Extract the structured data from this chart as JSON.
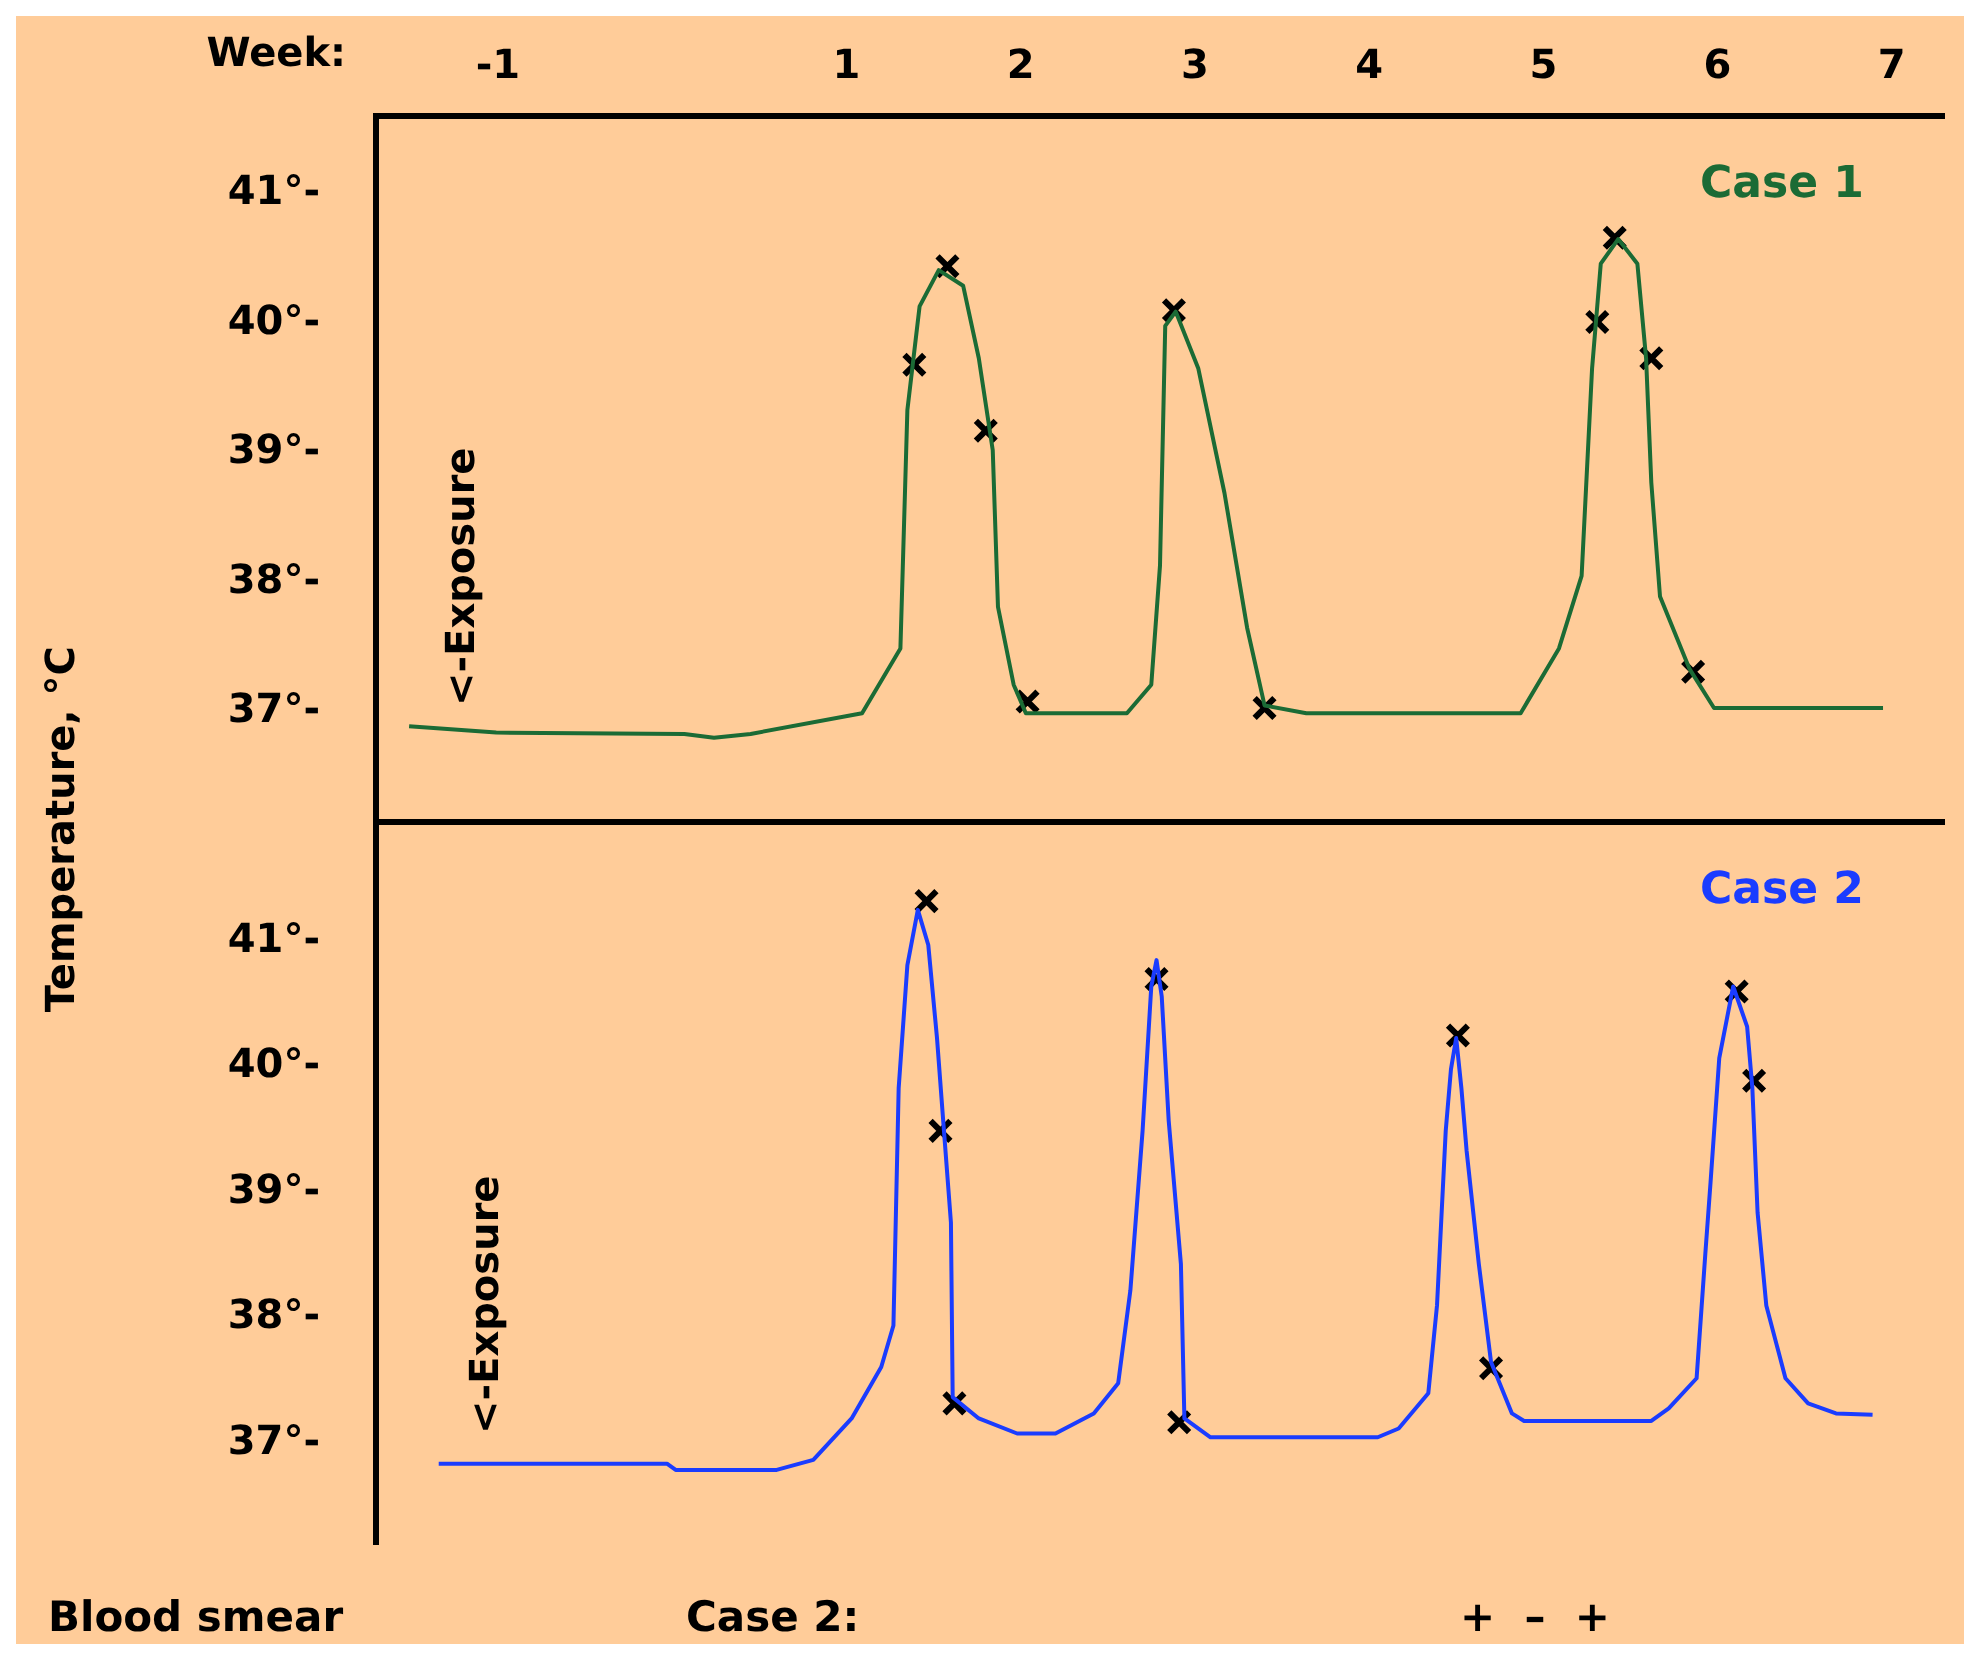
{
  "chart_data": [
    {
      "type": "line",
      "xlabel": "Week:",
      "ylabel": "Temperature, °C",
      "xlim": [
        -1.7,
        7.3
      ],
      "xticks": [
        -1,
        1,
        2,
        3,
        4,
        5,
        6,
        7
      ],
      "ylim": [
        36.15,
        41.6
      ],
      "yticks": [
        {
          "value": 37,
          "label": "37°-"
        },
        {
          "value": 38,
          "label": "38°-"
        },
        {
          "value": 39,
          "label": "39°-"
        },
        {
          "value": 40,
          "label": "40°-"
        },
        {
          "value": 41,
          "label": "41°-"
        }
      ],
      "annotations": [
        "<-Exposure"
      ],
      "series": [
        {
          "name": "Case 1",
          "color": "#1b6b35",
          "x": [
            -1.51,
            -1.01,
            0.07,
            0.24,
            0.45,
            1.09,
            1.31,
            1.35,
            1.42,
            1.53,
            1.67,
            1.76,
            1.84,
            1.87,
            1.96,
            2.03,
            2.61,
            2.75,
            2.8,
            2.83,
            2.89,
            3.02,
            3.17,
            3.3,
            3.4,
            3.64,
            4.87,
            5.09,
            5.22,
            5.28,
            5.33,
            5.43,
            5.54,
            5.59,
            5.62,
            5.67,
            5.84,
            5.98,
            6.95
          ],
          "values": [
            36.89,
            36.84,
            36.83,
            36.8,
            36.83,
            36.99,
            37.49,
            39.33,
            40.13,
            40.41,
            40.29,
            39.73,
            39.02,
            37.81,
            37.21,
            36.99,
            36.99,
            37.21,
            38.13,
            39.98,
            40.09,
            39.65,
            38.69,
            37.65,
            37.05,
            36.99,
            36.99,
            37.49,
            38.05,
            39.65,
            40.46,
            40.65,
            40.46,
            39.73,
            38.77,
            37.89,
            37.33,
            37.03,
            37.03
          ]
        },
        {
          "type": "scatter",
          "color": "#000000",
          "marker": "cross",
          "x": [
            1.39,
            1.58,
            1.8,
            2.04,
            2.88,
            3.4,
            5.31,
            5.41,
            5.62,
            5.86
          ],
          "values": [
            39.68,
            40.44,
            39.17,
            37.08,
            40.1,
            37.03,
            40.01,
            40.66,
            39.73,
            37.31
          ]
        }
      ]
    },
    {
      "type": "line",
      "tick_labels": "y",
      "xlim": [
        -1.7,
        7.3
      ],
      "xticks": [
        -1,
        1,
        2,
        3,
        4,
        5,
        6,
        7
      ],
      "ylim": [
        36.2,
        41.95
      ],
      "yticks": [
        {
          "value": 37,
          "label": "37°-"
        },
        {
          "value": 38,
          "label": "38°-"
        },
        {
          "value": 39,
          "label": "39°-"
        },
        {
          "value": 40,
          "label": "40°-"
        },
        {
          "value": 41,
          "label": "41°-"
        }
      ],
      "annotations": [
        "<-Exposure",
        "Blood smear",
        "Case 2:",
        "+  –  +"
      ],
      "series": [
        {
          "name": "Case 2",
          "color": "#1a3cff",
          "x": [
            -1.34,
            -0.03,
            0.02,
            0.6,
            0.81,
            1.03,
            1.2,
            1.27,
            1.3,
            1.35,
            1.41,
            1.47,
            1.52,
            1.56,
            1.6,
            1.61,
            1.76,
            1.98,
            2.2,
            2.42,
            2.56,
            2.63,
            2.7,
            2.75,
            2.78,
            2.81,
            2.85,
            2.92,
            2.94,
            3.09,
            4.05,
            4.17,
            4.34,
            4.39,
            4.44,
            4.47,
            4.5,
            4.53,
            4.56,
            4.63,
            4.7,
            4.82,
            4.89,
            5.62,
            5.72,
            5.88,
            5.93,
            5.96,
            6.01,
            6.09,
            6.17,
            6.2,
            6.23,
            6.28,
            6.39,
            6.52,
            6.68,
            6.89
          ],
          "values": [
            36.84,
            36.84,
            36.79,
            36.79,
            36.87,
            37.2,
            37.61,
            37.94,
            39.83,
            40.81,
            41.25,
            40.97,
            40.23,
            39.49,
            38.76,
            37.37,
            37.2,
            37.08,
            37.08,
            37.24,
            37.48,
            38.22,
            39.49,
            40.64,
            40.85,
            40.56,
            39.57,
            38.43,
            37.2,
            37.05,
            37.05,
            37.12,
            37.4,
            38.1,
            39.49,
            39.98,
            40.23,
            39.83,
            39.33,
            38.43,
            37.65,
            37.24,
            37.18,
            37.18,
            37.28,
            37.52,
            38.51,
            39.08,
            40.07,
            40.64,
            40.32,
            39.83,
            38.84,
            38.1,
            37.52,
            37.32,
            37.24,
            37.23
          ]
        },
        {
          "type": "scatter",
          "color": "#000000",
          "marker": "cross",
          "x": [
            1.46,
            1.54,
            1.62,
            2.78,
            2.91,
            4.51,
            4.7,
            6.11,
            6.21
          ],
          "values": [
            41.32,
            39.49,
            37.32,
            40.7,
            37.17,
            40.25,
            37.6,
            40.6,
            39.89
          ]
        }
      ]
    }
  ]
}
